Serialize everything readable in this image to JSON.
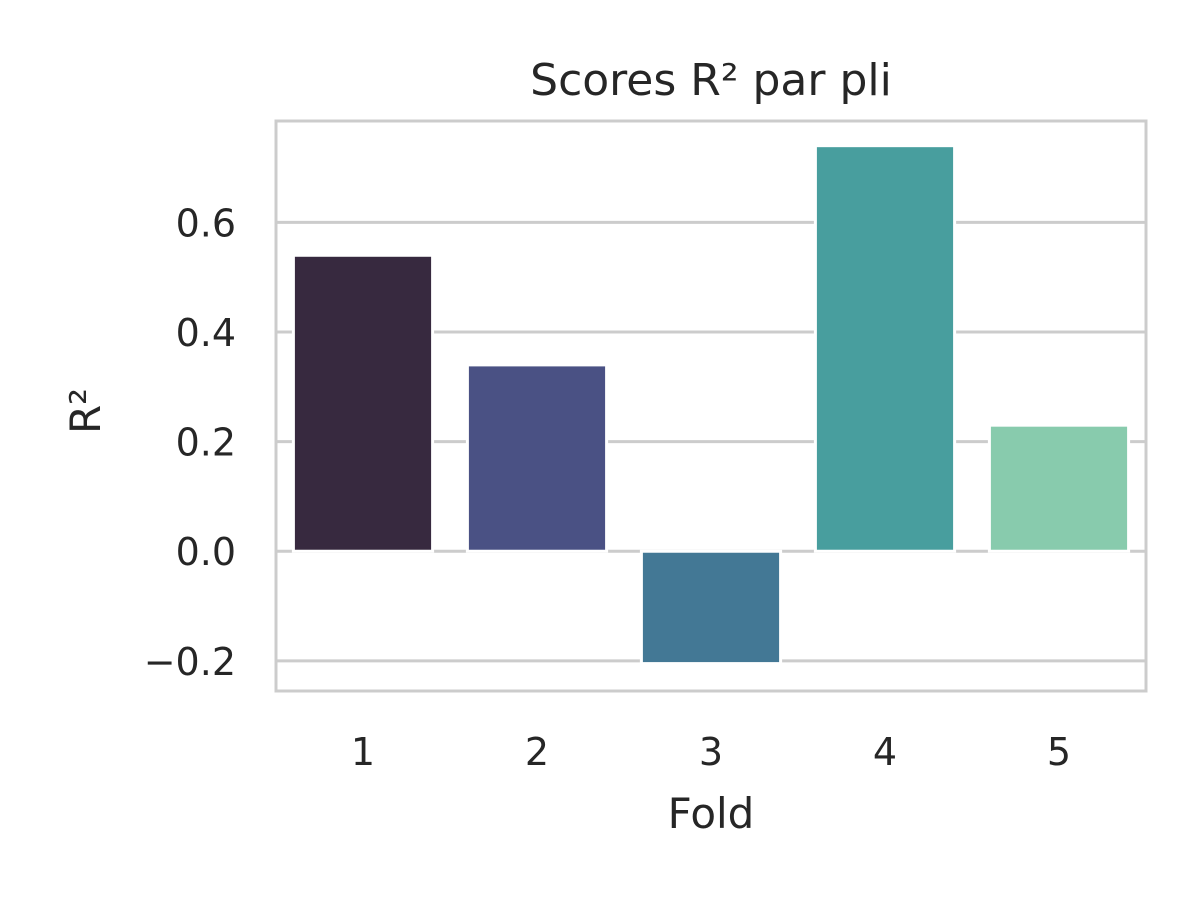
{
  "chart_data": {
    "type": "bar",
    "title": "Scores R² par pli",
    "xlabel": "Fold",
    "ylabel": "R²",
    "categories": [
      "1",
      "2",
      "3",
      "4",
      "5"
    ],
    "values": [
      0.54,
      0.34,
      -0.205,
      0.74,
      0.23
    ],
    "colors": [
      "#37293f",
      "#4a5184",
      "#437895",
      "#489e9e",
      "#88cbad"
    ],
    "ylim": [
      -0.255,
      0.785
    ],
    "yticks": [
      -0.2,
      0.0,
      0.2,
      0.4,
      0.6
    ],
    "ytick_labels": [
      "−0.2",
      "0.0",
      "0.2",
      "0.4",
      "0.6"
    ],
    "grid": true,
    "grid_axis": "y",
    "legend": false,
    "background": "#ffffff",
    "frame_color": "#cccccc",
    "grid_color": "#cccccc"
  }
}
